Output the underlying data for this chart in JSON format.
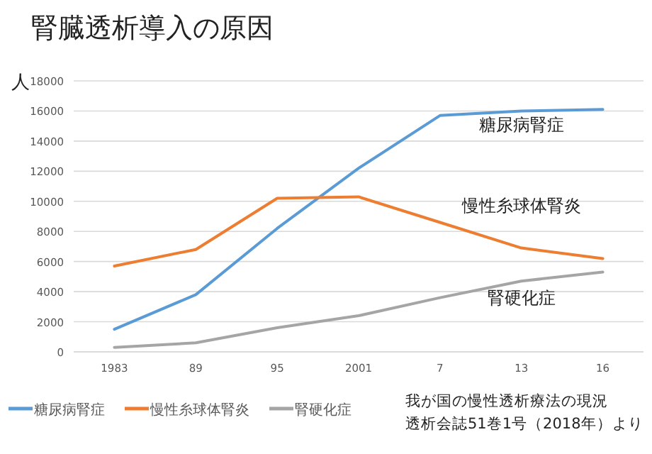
{
  "chart_data": {
    "type": "line",
    "title": "腎臓透析導入の原因",
    "ylabel": "人",
    "categories": [
      "1983",
      "89",
      "95",
      "2001",
      "7",
      "13",
      "16"
    ],
    "series": [
      {
        "name": "糖尿病腎症",
        "color": "#5b9bd5",
        "values": [
          1500,
          3800,
          8200,
          12200,
          15700,
          16000,
          16100
        ]
      },
      {
        "name": "慢性糸球体腎炎",
        "color": "#ed7d31",
        "values": [
          5700,
          6800,
          10200,
          10300,
          8600,
          6900,
          6200
        ]
      },
      {
        "name": "腎硬化症",
        "color": "#a5a5a5",
        "values": [
          300,
          600,
          1600,
          2400,
          3600,
          4700,
          5300
        ]
      }
    ],
    "ylim": [
      0,
      18000
    ],
    "yticks": [
      0,
      2000,
      4000,
      6000,
      8000,
      10000,
      12000,
      14000,
      16000,
      18000
    ],
    "grid": "y",
    "legend": "bottom",
    "marker": "none",
    "line_style": "solid",
    "annotations": [
      "我が国の慢性透析療法の現況",
      "透析会誌51巻1号（2018年）より"
    ]
  }
}
